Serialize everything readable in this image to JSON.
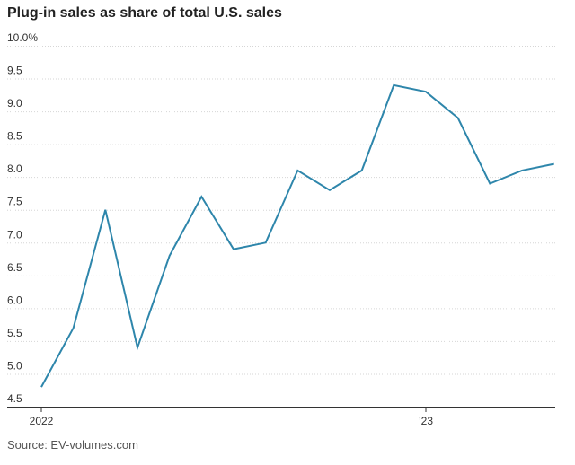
{
  "chart_data": {
    "type": "line",
    "title": "Plug-in sales as share of total U.S. sales",
    "source": "Source: EV-volumes.com",
    "xlabel": "",
    "ylabel": "",
    "ylim": [
      4.5,
      10.0
    ],
    "yticks": [
      {
        "value": 10.0,
        "label": "10.0%"
      },
      {
        "value": 9.5,
        "label": "9.5"
      },
      {
        "value": 9.0,
        "label": "9.0"
      },
      {
        "value": 8.5,
        "label": "8.5"
      },
      {
        "value": 8.0,
        "label": "8.0"
      },
      {
        "value": 7.5,
        "label": "7.5"
      },
      {
        "value": 7.0,
        "label": "7.0"
      },
      {
        "value": 6.5,
        "label": "6.5"
      },
      {
        "value": 6.0,
        "label": "6.0"
      },
      {
        "value": 5.5,
        "label": "5.5"
      },
      {
        "value": 5.0,
        "label": "5.0"
      },
      {
        "value": 4.5,
        "label": "4.5"
      }
    ],
    "xticks": [
      {
        "label": "2022",
        "x": "2022-01"
      },
      {
        "label": "’23",
        "x": "2023-01"
      }
    ],
    "x": [
      "2022-01",
      "2022-02",
      "2022-03",
      "2022-04",
      "2022-05",
      "2022-06",
      "2022-07",
      "2022-08",
      "2022-09",
      "2022-10",
      "2022-11",
      "2022-12",
      "2023-01",
      "2023-02",
      "2023-03",
      "2023-04",
      "2023-05"
    ],
    "series": [
      {
        "values": [
          4.8,
          5.7,
          7.5,
          5.4,
          6.8,
          7.7,
          6.9,
          7.0,
          8.1,
          7.8,
          8.1,
          9.4,
          9.3,
          8.9,
          7.9,
          8.1,
          8.2
        ],
        "color": "#2e86ab"
      }
    ],
    "grid": true,
    "legend": "none"
  }
}
